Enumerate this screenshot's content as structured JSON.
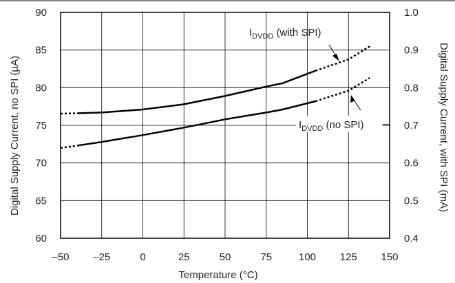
{
  "chart_data": {
    "type": "line",
    "xlabel": "Temperature (°C)",
    "ylabel": "Digital Supply Current, no SPI (µA)",
    "y2label": "Digital Supply Current, with SPI (mA)",
    "xlim": [
      -50,
      150
    ],
    "ylim": [
      60,
      90
    ],
    "y2lim": [
      0.4,
      1.0
    ],
    "grid": true,
    "x_ticks": [
      "–50",
      "–25",
      "0",
      "25",
      "50",
      "75",
      "100",
      "125",
      "150"
    ],
    "y_ticks": [
      "60",
      "65",
      "70",
      "75",
      "80",
      "85",
      "90"
    ],
    "y2_ticks": [
      "0.4",
      "0.5",
      "0.6",
      "0.7",
      "0.8",
      "0.9",
      "1.0"
    ],
    "series": [
      {
        "name": "IDVDD (with SPI)",
        "axis": "right",
        "x": [
          -50,
          -40,
          -25,
          0,
          25,
          50,
          75,
          85,
          105,
          125,
          138
        ],
        "values": [
          0.731,
          0.732,
          0.734,
          0.742,
          0.756,
          0.778,
          0.803,
          0.812,
          0.845,
          0.875,
          0.91
        ],
        "measured_range": [
          -40,
          105
        ]
      },
      {
        "name": "IDVDD (no SPI)",
        "axis": "left",
        "x": [
          -50,
          -40,
          -25,
          0,
          25,
          50,
          75,
          85,
          105,
          125,
          138
        ],
        "values": [
          72.0,
          72.3,
          72.8,
          73.7,
          74.7,
          75.8,
          76.7,
          77.1,
          78.2,
          79.6,
          81.3
        ],
        "measured_range": [
          -40,
          105
        ]
      }
    ],
    "annotations": [
      {
        "main": "I",
        "sub": "DVDD",
        "rest": " (with SPI)"
      },
      {
        "main": "I",
        "sub": "DVDD",
        "rest": " (no SPI)"
      }
    ]
  }
}
